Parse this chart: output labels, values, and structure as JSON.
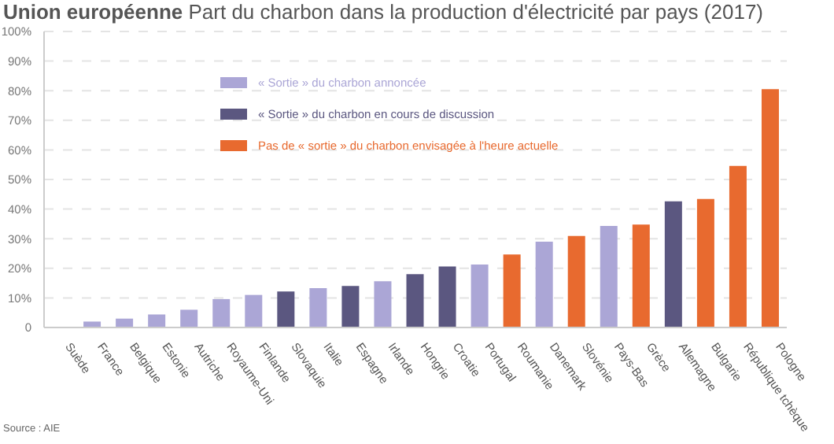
{
  "chart_data": {
    "type": "bar",
    "title": "Union européenne",
    "subtitle": "Part du charbon dans la production d'électricité par pays (2017)",
    "categories": [
      "Suède",
      "France",
      "Belgique",
      "Estonie",
      "Autriche",
      "Royaume-Uni",
      "Finlande",
      "Slovaquie",
      "Italie",
      "Espagne",
      "Irlande",
      "Hongrie",
      "Croatie",
      "Portugal",
      "Roumanie",
      "Danemark",
      "Slovénie",
      "Pays-Bas",
      "Grèce",
      "Allemagne",
      "Bulgarie",
      "République tchèque",
      "Pologne"
    ],
    "stacked": true,
    "series": [
      {
        "name": "« Sortie » du charbon annoncée",
        "color": "#aba6d6",
        "values": [
          0,
          2,
          3,
          4.4,
          6,
          9.6,
          11,
          null,
          13.3,
          null,
          15.6,
          null,
          null,
          21.3,
          null,
          29,
          null,
          34.3,
          null,
          null,
          null,
          null,
          null
        ]
      },
      {
        "name": "« Sortie » du charbon en cours de discussion",
        "color": "#5b5780",
        "values": [
          null,
          null,
          null,
          null,
          null,
          null,
          null,
          12.2,
          null,
          14,
          null,
          18,
          20.6,
          null,
          null,
          null,
          null,
          null,
          null,
          42.6,
          null,
          null,
          null
        ]
      },
      {
        "name": "Pas de « sortie » du charbon envisagée à l'heure actuelle",
        "color": "#e86a2f",
        "values": [
          null,
          null,
          null,
          null,
          null,
          null,
          null,
          null,
          null,
          null,
          null,
          null,
          null,
          null,
          24.7,
          null,
          30.9,
          null,
          34.8,
          null,
          43.4,
          54.6,
          80.5
        ]
      }
    ],
    "ylim": [
      0,
      100
    ],
    "yticks": [
      0,
      {
        "value": 10,
        "label": "10%"
      },
      {
        "value": 20,
        "label": "20%"
      },
      {
        "value": 30,
        "label": "30%"
      },
      {
        "value": 40,
        "label": "40%"
      },
      {
        "value": 50,
        "label": "50%"
      },
      {
        "value": 60,
        "label": "60%"
      },
      {
        "value": 70,
        "label": "70%"
      },
      {
        "value": 80,
        "label": "80%"
      },
      {
        "value": 90,
        "label": "90%"
      },
      {
        "value": 100,
        "label": "100%"
      }
    ],
    "grid": "y",
    "legend": "top",
    "annotations": [
      "Source : AIE"
    ]
  }
}
